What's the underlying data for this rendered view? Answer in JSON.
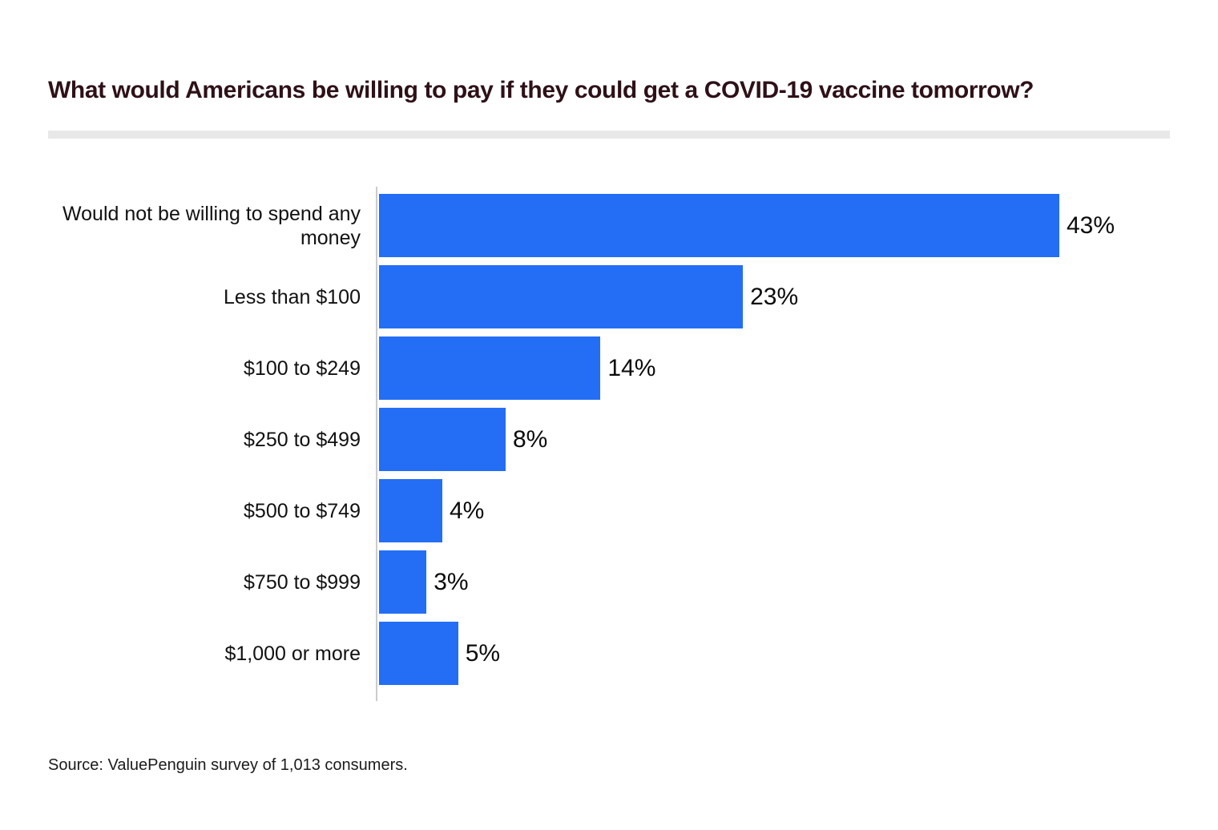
{
  "title": "What would Americans be willing to pay if they could get a COVID-19 vaccine tomorrow?",
  "source": "Source: ValuePenguin survey of 1,013 consumers.",
  "colors": {
    "bar": "#236EF5",
    "title": "#2E1118",
    "divider": "#E8E8E8",
    "axis": "#CCCCCC"
  },
  "chart_data": {
    "type": "bar",
    "orientation": "horizontal",
    "title": "What would Americans be willing to pay if they could get a COVID-19 vaccine tomorrow?",
    "categories": [
      "Would not be willing to spend any money",
      "Less than $100",
      "$100 to $249",
      "$250 to $499",
      "$500 to $749",
      "$750 to $999",
      "$1,000 or more"
    ],
    "values": [
      43,
      23,
      14,
      8,
      4,
      3,
      5
    ],
    "value_labels": [
      "43%",
      "23%",
      "14%",
      "8%",
      "4%",
      "3%",
      "5%"
    ],
    "unit": "percent",
    "xlabel": "",
    "ylabel": "",
    "xlim": [
      0,
      43
    ],
    "grid": false,
    "legend": false,
    "data_labels_position": "right-of-bar"
  }
}
